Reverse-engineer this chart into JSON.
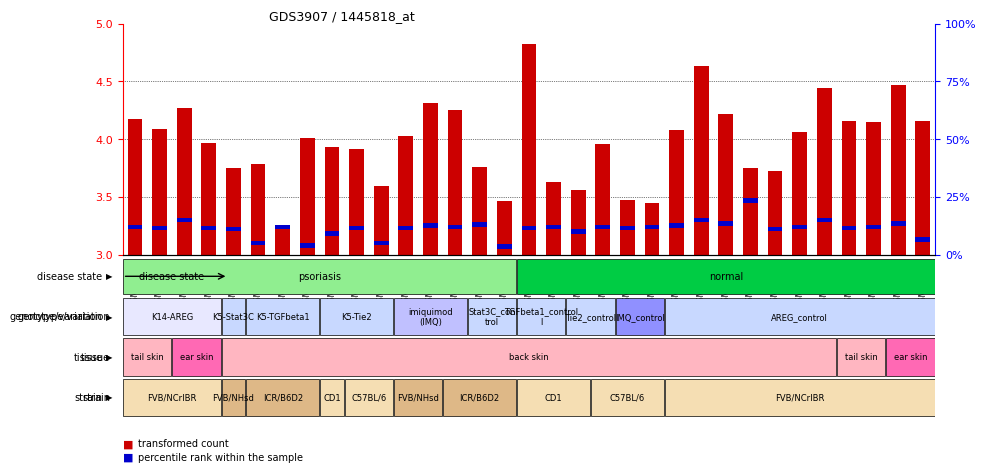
{
  "title": "GDS3907 / 1445818_at",
  "samples": [
    "GSM684694",
    "GSM684695",
    "GSM684696",
    "GSM684688",
    "GSM684689",
    "GSM684690",
    "GSM684700",
    "GSM684701",
    "GSM684704",
    "GSM684705",
    "GSM684706",
    "GSM684676",
    "GSM684677",
    "GSM684678",
    "GSM684682",
    "GSM684683",
    "GSM684684",
    "GSM684702",
    "GSM684703",
    "GSM684707",
    "GSM684708",
    "GSM684709",
    "GSM684679",
    "GSM684680",
    "GSM684661",
    "GSM684685",
    "GSM684686",
    "GSM684687",
    "GSM684698",
    "GSM684699",
    "GSM684691",
    "GSM684692",
    "GSM684693"
  ],
  "bar_values": [
    4.17,
    4.09,
    4.27,
    3.97,
    3.75,
    3.78,
    3.25,
    4.01,
    3.93,
    3.91,
    3.59,
    4.03,
    4.31,
    4.25,
    3.76,
    3.46,
    4.82,
    3.63,
    3.56,
    3.96,
    3.47,
    3.45,
    4.08,
    4.63,
    4.22,
    3.75,
    3.72,
    4.06,
    4.44,
    4.16,
    4.15,
    4.47,
    4.16
  ],
  "blue_values": [
    3.24,
    3.23,
    3.3,
    3.23,
    3.22,
    3.1,
    3.24,
    3.08,
    3.18,
    3.23,
    3.1,
    3.23,
    3.25,
    3.24,
    3.26,
    3.07,
    3.23,
    3.24,
    3.2,
    3.24,
    3.23,
    3.24,
    3.25,
    3.3,
    3.27,
    3.47,
    3.22,
    3.24,
    3.3,
    3.23,
    3.24,
    3.27,
    3.13
  ],
  "ymin": 3.0,
  "ymax": 5.0,
  "yticks": [
    3.0,
    3.5,
    4.0,
    4.5,
    5.0
  ],
  "right_yticks": [
    0,
    25,
    50,
    75,
    100
  ],
  "right_yticklabels": [
    "0%",
    "25%",
    "50%",
    "75%",
    "100%"
  ],
  "disease_state": {
    "psoriasis": {
      "start": 0,
      "end": 16,
      "color": "#90EE90",
      "label": "psoriasis"
    },
    "normal": {
      "start": 16,
      "end": 33,
      "color": "#00CC44",
      "label": "normal"
    }
  },
  "genotype_groups": [
    {
      "label": "K14-AREG",
      "start": 0,
      "end": 4,
      "color": "#E8E8FF"
    },
    {
      "label": "K5-Stat3C",
      "start": 4,
      "end": 5,
      "color": "#C8D8FF"
    },
    {
      "label": "K5-TGFbeta1",
      "start": 5,
      "end": 8,
      "color": "#C8D8FF"
    },
    {
      "label": "K5-Tie2",
      "start": 8,
      "end": 11,
      "color": "#C8D8FF"
    },
    {
      "label": "imiquimod\n(IMQ)",
      "start": 11,
      "end": 14,
      "color": "#C0C0FF"
    },
    {
      "label": "Stat3C_con\ntrol",
      "start": 14,
      "end": 16,
      "color": "#C8D8FF"
    },
    {
      "label": "TGFbeta1_control\nl",
      "start": 16,
      "end": 18,
      "color": "#C8D8FF"
    },
    {
      "label": "Tie2_control",
      "start": 18,
      "end": 20,
      "color": "#C8D8FF"
    },
    {
      "label": "IMQ_control",
      "start": 20,
      "end": 22,
      "color": "#9090FF"
    },
    {
      "label": "AREG_control",
      "start": 22,
      "end": 33,
      "color": "#C8D8FF"
    }
  ],
  "tissue_groups": [
    {
      "label": "tail skin",
      "start": 0,
      "end": 2,
      "color": "#FFB6C1"
    },
    {
      "label": "ear skin",
      "start": 2,
      "end": 4,
      "color": "#FF69B4"
    },
    {
      "label": "back skin",
      "start": 4,
      "end": 29,
      "color": "#FFB6C1"
    },
    {
      "label": "tail skin",
      "start": 29,
      "end": 31,
      "color": "#FFB6C1"
    },
    {
      "label": "ear skin",
      "start": 31,
      "end": 33,
      "color": "#FF69B4"
    }
  ],
  "strain_groups": [
    {
      "label": "FVB/NCrIBR",
      "start": 0,
      "end": 4,
      "color": "#F5DEB3"
    },
    {
      "label": "FVB/NHsd",
      "start": 4,
      "end": 5,
      "color": "#DEB887"
    },
    {
      "label": "ICR/B6D2",
      "start": 5,
      "end": 8,
      "color": "#DEB887"
    },
    {
      "label": "CD1",
      "start": 8,
      "end": 9,
      "color": "#F5DEB3"
    },
    {
      "label": "C57BL/6",
      "start": 9,
      "end": 11,
      "color": "#F5DEB3"
    },
    {
      "label": "FVB/NHsd",
      "start": 11,
      "end": 13,
      "color": "#DEB887"
    },
    {
      "label": "ICR/B6D2",
      "start": 13,
      "end": 16,
      "color": "#DEB887"
    },
    {
      "label": "CD1",
      "start": 16,
      "end": 19,
      "color": "#F5DEB3"
    },
    {
      "label": "C57BL/6",
      "start": 19,
      "end": 22,
      "color": "#F5DEB3"
    },
    {
      "label": "FVB/NCrIBR",
      "start": 22,
      "end": 33,
      "color": "#F5DEB3"
    }
  ],
  "row_labels": [
    "disease state",
    "genotype/variation",
    "tissue",
    "strain"
  ],
  "bar_color": "#CC0000",
  "blue_color": "#0000CC",
  "background_color": "#FFFFFF"
}
